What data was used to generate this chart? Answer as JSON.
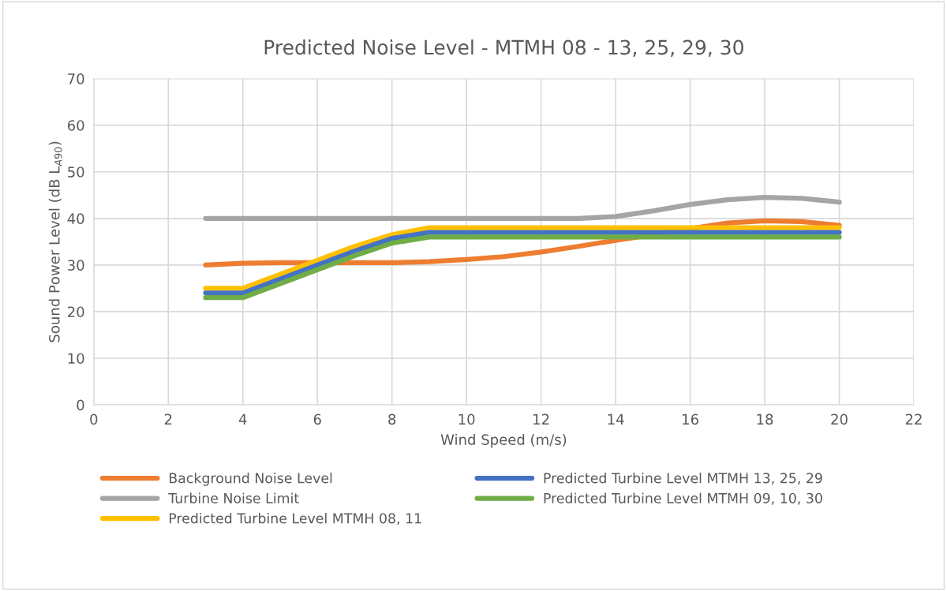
{
  "chart_data": {
    "type": "line",
    "title": "Predicted Noise Level - MTMH 08 - 13, 25, 29, 30",
    "xlabel": "Wind Speed (m/s)",
    "ylabel": "Sound Power Level (dB L$_{A90}$)",
    "x": [
      3,
      4,
      5,
      6,
      7,
      8,
      9,
      10,
      11,
      12,
      13,
      14,
      15,
      16,
      17,
      18,
      19,
      20
    ],
    "series": [
      {
        "name": "Background Noise Level",
        "color": "#ed7d31",
        "values": [
          30,
          30.4,
          30.5,
          30.5,
          30.5,
          30.5,
          30.7,
          31.2,
          31.8,
          32.8,
          34,
          35.3,
          36.5,
          37.8,
          39,
          39.5,
          39.3,
          38.5
        ]
      },
      {
        "name": "Turbine Noise Limit",
        "color": "#a5a5a5",
        "values": [
          40,
          40,
          40,
          40,
          40,
          40,
          40,
          40,
          40,
          40,
          40,
          40.4,
          41.6,
          43,
          44,
          44.5,
          44.3,
          43.5
        ]
      },
      {
        "name": "Predicted Turbine Level MTMH 08, 11",
        "color": "#ffc000",
        "values": [
          25,
          25,
          28,
          31,
          34,
          36.5,
          38,
          38,
          38,
          38,
          38,
          38,
          38,
          38,
          38,
          38,
          38,
          38
        ]
      },
      {
        "name": "Predicted Turbine Level MTMH 13, 25, 29",
        "color": "#4472c4",
        "values": [
          24,
          24,
          27,
          30,
          33,
          35.7,
          37,
          37,
          37,
          37,
          37,
          37,
          37,
          37,
          37,
          37,
          37,
          37
        ]
      },
      {
        "name": "Predicted Turbine Level MTMH 09, 10, 30",
        "color": "#70ad47",
        "values": [
          23,
          23,
          26,
          29,
          32,
          34.7,
          36,
          36,
          36,
          36,
          36,
          36,
          36,
          36,
          36,
          36,
          36,
          36
        ]
      }
    ],
    "xlim": [
      0,
      22
    ],
    "xticks": [
      0,
      2,
      4,
      6,
      8,
      10,
      12,
      14,
      16,
      18,
      20,
      22
    ],
    "ylim": [
      0,
      70
    ],
    "yticks": [
      0,
      10,
      20,
      30,
      40,
      50,
      60,
      70
    ],
    "grid": true,
    "legend": "bottom",
    "marker": "none",
    "line_style": "solid"
  }
}
